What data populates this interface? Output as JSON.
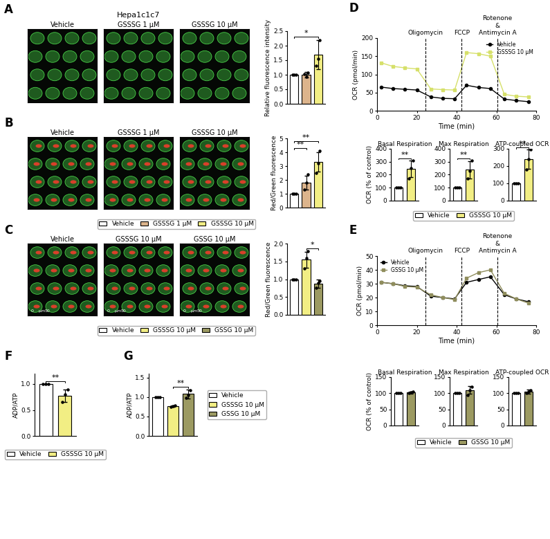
{
  "image_panels": [
    {
      "panel": "A",
      "header": "Hepa1c1c7",
      "titles": [
        "Vehicle",
        "GSSSG 1 µM",
        "GSSSG 10 µM"
      ]
    },
    {
      "panel": "B",
      "titles": [
        "Vehicle",
        "GSSSG 1 µM",
        "GSSSG 10 µM"
      ]
    },
    {
      "panel": "C",
      "titles": [
        "Vehicle",
        "GSSSG 10 µM",
        "GSSG 10 µM"
      ],
      "scale_text": [
        "0",
        "µm",
        "50"
      ]
    }
  ],
  "chart_data": [
    {
      "type": "bar",
      "y_label": "Relative fluorescence intensity",
      "ylim": [
        0,
        2.5
      ],
      "yticks": [
        {
          "value": 0,
          "label": "0.0"
        },
        {
          "value": 0.5,
          "label": "0.5"
        },
        {
          "value": 1.0,
          "label": "1.0"
        },
        {
          "value": 1.5,
          "label": "1.5"
        },
        {
          "value": 2.0,
          "label": "2.0"
        },
        {
          "value": 2.5,
          "label": "2.5"
        }
      ],
      "tick_labels": "y",
      "series": [
        {
          "name": "Vehicle",
          "color": "#ffffff",
          "values": [
            1.0
          ],
          "errors": [
            0
          ],
          "points": [
            1.0,
            1.0,
            1.0
          ]
        },
        {
          "name": "GSSSG 1 µM",
          "color": "#dcb48c",
          "values": [
            1.0
          ],
          "errors": [
            0.1
          ],
          "points": [
            1.02,
            0.92,
            1.08
          ]
        },
        {
          "name": "GSSSG 10 µM",
          "color": "#f2ee84",
          "values": [
            1.7
          ],
          "errors": [
            0.5
          ],
          "points": [
            1.3,
            1.55,
            2.2
          ]
        }
      ],
      "comparisons": [
        {
          "between": [
            "Vehicle",
            "GSSSG 10 µM"
          ],
          "label": "*"
        }
      ]
    },
    {
      "type": "bar",
      "y_label": "Red/Green fluorescence",
      "ylim": [
        0,
        5
      ],
      "yticks": [
        0,
        1,
        2,
        3,
        4,
        5
      ],
      "tick_labels": "y",
      "legend": "below",
      "series": [
        {
          "name": "Vehicle",
          "color": "#ffffff",
          "values": [
            1.0
          ],
          "errors": [
            0
          ],
          "points": [
            1.0,
            1.0,
            1.0
          ]
        },
        {
          "name": "GSSSG 1 µM",
          "color": "#dcb48c",
          "values": [
            1.8
          ],
          "errors": [
            0.5
          ],
          "points": [
            1.3,
            1.8,
            2.4
          ]
        },
        {
          "name": "GSSSG 10 µM",
          "color": "#f2ee84",
          "values": [
            3.3
          ],
          "errors": [
            0.7
          ],
          "points": [
            2.5,
            3.2,
            4.1
          ]
        }
      ],
      "comparisons": [
        {
          "between": [
            "Vehicle",
            "GSSSG 1 µM"
          ],
          "label": "**"
        },
        {
          "between": [
            "Vehicle",
            "GSSSG 10 µM"
          ],
          "label": "**"
        }
      ]
    },
    {
      "type": "bar",
      "y_label": "Red/Green fluorescence",
      "ylim": [
        0,
        2.0
      ],
      "yticks": [
        {
          "value": 0,
          "label": "0.0"
        },
        {
          "value": 0.5,
          "label": "0.5"
        },
        {
          "value": 1.0,
          "label": "1.0"
        },
        {
          "value": 1.5,
          "label": "1.5"
        },
        {
          "value": 2.0,
          "label": "2.0"
        }
      ],
      "tick_labels": "y",
      "legend": "below",
      "series": [
        {
          "name": "Vehicle",
          "color": "#ffffff",
          "values": [
            1.0
          ],
          "errors": [
            0
          ],
          "points": [
            1.0,
            1.0,
            1.0
          ]
        },
        {
          "name": "GSSSG 10 µM",
          "color": "#f2ee84",
          "values": [
            1.55
          ],
          "errors": [
            0.22
          ],
          "points": [
            1.3,
            1.6,
            1.78
          ]
        },
        {
          "name": "GSSG 10 µM",
          "color": "#9c9a62",
          "values": [
            0.87
          ],
          "errors": [
            0.12
          ],
          "points": [
            0.75,
            0.9,
            0.95
          ]
        }
      ],
      "comparisons": [
        {
          "between": [
            "GSSSG 10 µM",
            "GSSG 10 µM"
          ],
          "label": "*"
        }
      ]
    },
    {
      "type": "line",
      "panel": "D",
      "x_label": "Time (min)",
      "y_label": "OCR (pmol/min)",
      "x": [
        2,
        8,
        14,
        20,
        27,
        33,
        39,
        45,
        51,
        57,
        64,
        70,
        76
      ],
      "xlim": [
        0,
        80
      ],
      "xticks": [
        0,
        20,
        40,
        60,
        80
      ],
      "ylim": [
        0,
        200
      ],
      "yticks": [
        0,
        50,
        100,
        150,
        200
      ],
      "legend": "upper right",
      "annotations": [
        {
          "x": 24.5,
          "text": "Oligomycin"
        },
        {
          "x": 42.5,
          "text": "FCCP"
        },
        {
          "x": 60.5,
          "text": "Rotenone\n&\nAntimycin A"
        }
      ],
      "series": [
        {
          "name": "Vehicle",
          "color": "#000000",
          "marker": "circle",
          "values": [
            65,
            61,
            59,
            57,
            38,
            34,
            33,
            70,
            64,
            61,
            32,
            28,
            25
          ]
        },
        {
          "name": "GSSSG 10 µM",
          "color": "#d6e06a",
          "marker": "square",
          "values": [
            132,
            122,
            118,
            115,
            60,
            58,
            57,
            160,
            157,
            150,
            45,
            40,
            38
          ]
        }
      ]
    },
    {
      "type": "bar",
      "title": "Basal Respiration",
      "y_label": "OCR (% of control)",
      "ylim": [
        0,
        400
      ],
      "yticks": [
        0,
        100,
        200,
        300,
        400
      ],
      "tick_labels": "y",
      "series": [
        {
          "name": "Vehicle",
          "color": "#ffffff",
          "values": [
            100
          ],
          "errors": [
            0
          ],
          "points": [
            100,
            100,
            100
          ]
        },
        {
          "name": "GSSSG 10 µM",
          "color": "#f2ee84",
          "values": [
            245
          ],
          "errors": [
            65
          ],
          "points": [
            170,
            250,
            310
          ]
        }
      ],
      "comparisons": [
        {
          "between": [
            "Vehicle",
            "GSSSG 10 µM"
          ],
          "label": "**"
        }
      ]
    },
    {
      "type": "bar",
      "title": "Max Respiration",
      "ylim": [
        0,
        400
      ],
      "yticks": [
        0,
        100,
        200,
        300,
        400
      ],
      "tick_labels": "y",
      "legend": "below",
      "series": [
        {
          "name": "Vehicle",
          "color": "#ffffff",
          "values": [
            100
          ],
          "errors": [
            0
          ],
          "points": [
            100,
            100,
            100
          ]
        },
        {
          "name": "GSSSG 10 µM",
          "color": "#f2ee84",
          "values": [
            238
          ],
          "errors": [
            68
          ],
          "points": [
            170,
            230,
            310
          ]
        }
      ],
      "comparisons": [
        {
          "between": [
            "Vehicle",
            "GSSSG 10 µM"
          ],
          "label": "**"
        }
      ]
    },
    {
      "type": "bar",
      "title": "ATP-coupled OCR",
      "ylim": [
        0,
        300
      ],
      "yticks": [
        0,
        100,
        200,
        300
      ],
      "tick_labels": "y",
      "series": [
        {
          "name": "Vehicle",
          "color": "#ffffff",
          "values": [
            100
          ],
          "errors": [
            0
          ],
          "points": [
            100,
            100,
            100
          ]
        },
        {
          "name": "GSSSG 10 µM",
          "color": "#f2ee84",
          "values": [
            240
          ],
          "errors": [
            55
          ],
          "points": [
            180,
            240,
            295
          ]
        }
      ],
      "comparisons": [
        {
          "between": [
            "Vehicle",
            "GSSSG 10 µM"
          ],
          "label": "**"
        }
      ]
    },
    {
      "type": "line",
      "panel": "E",
      "x_label": "Time (min)",
      "y_label": "OCR (pmol/min)",
      "x": [
        2,
        8,
        14,
        20,
        27,
        33,
        39,
        45,
        51,
        57,
        64,
        70,
        76
      ],
      "xlim": [
        0,
        80
      ],
      "xticks": [
        0,
        20,
        40,
        60,
        80
      ],
      "ylim": [
        0,
        50
      ],
      "yticks": [
        0,
        10,
        20,
        30,
        40,
        50
      ],
      "legend": "upper left",
      "annotations": [
        {
          "x": 24.5,
          "text": "Oligomycin"
        },
        {
          "x": 42.5,
          "text": "FCCP"
        },
        {
          "x": 60.5,
          "text": "Rotenone\n&\nAntimycin A"
        }
      ],
      "series": [
        {
          "name": "Vehicle",
          "color": "#000000",
          "marker": "circle",
          "values": [
            31,
            30,
            28.5,
            28,
            21,
            20,
            19,
            31,
            33,
            35,
            22,
            19,
            17
          ]
        },
        {
          "name": "GSSG 10 µM",
          "color": "#8f8d5c",
          "marker": "square",
          "values": [
            31,
            30,
            28,
            27.5,
            22,
            20,
            18.5,
            34,
            38,
            40,
            23,
            19,
            16
          ]
        }
      ]
    },
    {
      "type": "bar",
      "title": "Basal Respiration",
      "y_label": "OCR (% of control)",
      "ylim": [
        0,
        150
      ],
      "yticks": [
        0,
        50,
        100,
        150
      ],
      "tick_labels": "y",
      "series": [
        {
          "name": "Vehicle",
          "color": "#ffffff",
          "values": [
            100
          ],
          "errors": [
            0
          ],
          "points": [
            100,
            100,
            100
          ]
        },
        {
          "name": "GSSG 10 µM",
          "color": "#9c9a62",
          "values": [
            102
          ],
          "errors": [
            3
          ],
          "points": [
            100,
            102,
            104
          ]
        }
      ]
    },
    {
      "type": "bar",
      "title": "Max Respiration",
      "ylim": [
        0,
        150
      ],
      "yticks": [
        0,
        50,
        100,
        150
      ],
      "tick_labels": "y",
      "legend": "below",
      "series": [
        {
          "name": "Vehicle",
          "color": "#ffffff",
          "values": [
            100
          ],
          "errors": [
            0
          ],
          "points": [
            100,
            100,
            100
          ]
        },
        {
          "name": "GSSG 10 µM",
          "color": "#9c9a62",
          "values": [
            110
          ],
          "errors": [
            12
          ],
          "points": [
            95,
            110,
            120
          ]
        }
      ]
    },
    {
      "type": "bar",
      "title": "ATP-coupled OCR",
      "ylim": [
        0,
        150
      ],
      "yticks": [
        0,
        50,
        100,
        150
      ],
      "tick_labels": "y",
      "series": [
        {
          "name": "Vehicle",
          "color": "#ffffff",
          "values": [
            100
          ],
          "errors": [
            0
          ],
          "points": [
            100,
            100,
            100
          ]
        },
        {
          "name": "GSSG 10 µM",
          "color": "#9c9a62",
          "values": [
            105
          ],
          "errors": [
            6
          ],
          "points": [
            100,
            104,
            110
          ]
        }
      ]
    },
    {
      "type": "bar",
      "panel": "F",
      "y_label": "ADP/ATP",
      "ylim": [
        0,
        1.2
      ],
      "yticks": [
        {
          "value": 0,
          "label": "0.0"
        },
        {
          "value": 0.5,
          "label": "0.5"
        },
        {
          "value": 1.0,
          "label": "1.0"
        }
      ],
      "tick_labels": "y",
      "legend": "below",
      "series": [
        {
          "name": "Vehicle",
          "color": "#ffffff",
          "values": [
            1.0
          ],
          "errors": [
            0
          ],
          "points": [
            1.0,
            1.0,
            1.0
          ]
        },
        {
          "name": "GSSSG 10 µM",
          "color": "#f2ee84",
          "values": [
            0.78
          ],
          "errors": [
            0.12
          ],
          "points": [
            0.65,
            0.8,
            0.9
          ]
        }
      ],
      "comparisons": [
        {
          "between": [
            "Vehicle",
            "GSSSG 10 µM"
          ],
          "label": "**"
        }
      ]
    },
    {
      "type": "bar",
      "panel": "G",
      "y_label": "ADP/ATP",
      "ylim": [
        0,
        1.6
      ],
      "yticks": [
        {
          "value": 0,
          "label": "0.0"
        },
        {
          "value": 0.5,
          "label": "0.5"
        },
        {
          "value": 1.0,
          "label": "1.0"
        },
        {
          "value": 1.5,
          "label": "1.5"
        }
      ],
      "tick_labels": "y",
      "legend": "right",
      "series": [
        {
          "name": "Vehicle",
          "color": "#ffffff",
          "values": [
            1.0
          ],
          "errors": [
            0
          ],
          "points": [
            1.0,
            1.0,
            1.0
          ]
        },
        {
          "name": "GSSSG 10 µM",
          "color": "#f2ee84",
          "values": [
            0.77
          ],
          "errors": [
            0.02
          ],
          "points": [
            0.75,
            0.77,
            0.78
          ]
        },
        {
          "name": "GSSG 10 µM",
          "color": "#9c9a62",
          "values": [
            1.08
          ],
          "errors": [
            0.12
          ],
          "points": [
            0.98,
            1.05,
            1.18
          ]
        }
      ],
      "comparisons": [
        {
          "between": [
            "GSSSG 10 µM",
            "GSSG 10 µM"
          ],
          "label": "**"
        }
      ]
    }
  ]
}
